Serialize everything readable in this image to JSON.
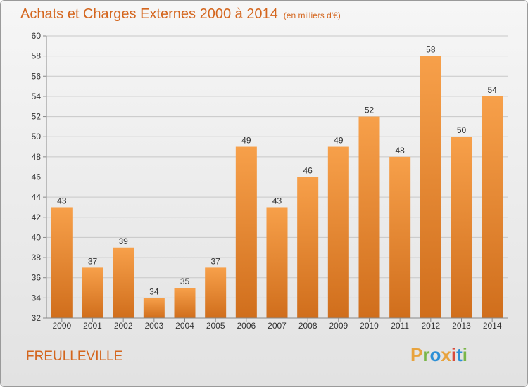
{
  "header": {
    "title": "Achats et Charges Externes 2000 à 2014",
    "subtitle": "(en milliers d'€)"
  },
  "footer": {
    "commune": "FREULLEVILLE",
    "logo_text": "Proxiti",
    "logo_colors": [
      "#e8a33d",
      "#7ab648",
      "#2c8fd6",
      "#e8a33d",
      "#d94a3b",
      "#2c8fd6",
      "#7ab648"
    ]
  },
  "colors": {
    "accent": "#d4661e",
    "bar_light": "#f7a04a",
    "bar_dark": "#d06e1c"
  },
  "chart_data": {
    "type": "bar",
    "categories": [
      "2000",
      "2001",
      "2002",
      "2003",
      "2004",
      "2005",
      "2006",
      "2007",
      "2008",
      "2009",
      "2010",
      "2011",
      "2012",
      "2013",
      "2014"
    ],
    "values": [
      43,
      37,
      39,
      34,
      35,
      37,
      49,
      43,
      46,
      49,
      52,
      48,
      58,
      50,
      54
    ],
    "ylim": [
      32,
      60
    ],
    "yticks": [
      32,
      34,
      36,
      38,
      40,
      42,
      44,
      46,
      48,
      50,
      52,
      54,
      56,
      58,
      60
    ],
    "grid": true,
    "data_labels": true
  }
}
